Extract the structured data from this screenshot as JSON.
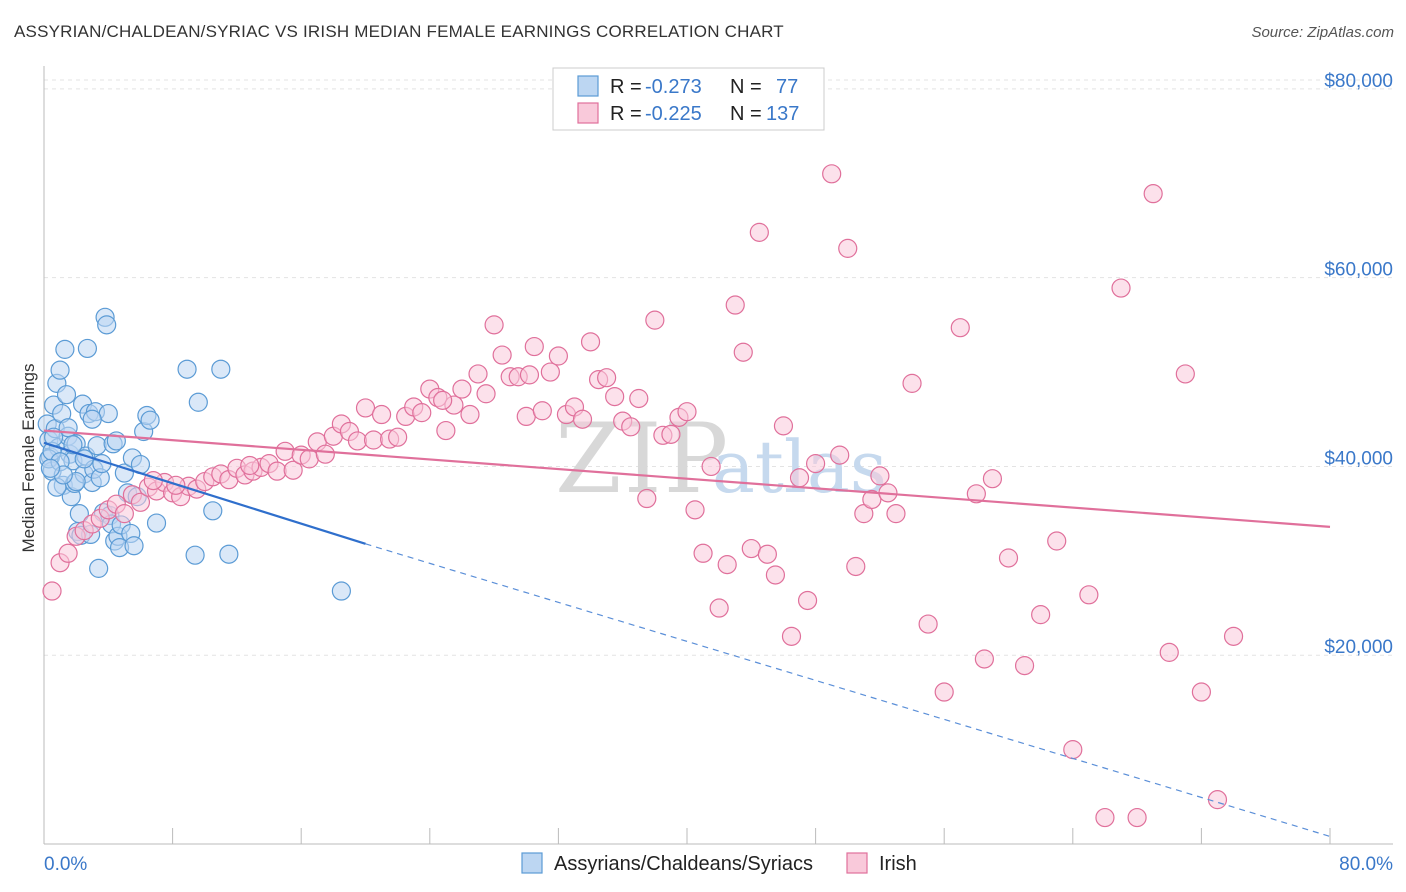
{
  "chart_data": {
    "type": "scatter",
    "title": "ASSYRIAN/CHALDEAN/SYRIAC VS IRISH MEDIAN FEMALE EARNINGS CORRELATION CHART",
    "source": "Source: ZipAtlas.com",
    "watermark": "ZIPatlas",
    "xlabel": "",
    "ylabel": "Median Female Earnings",
    "xlim": [
      0,
      80
    ],
    "ylim": [
      0,
      82000
    ],
    "x_tick_labels": {
      "left": "0.0%",
      "right": "80.0%"
    },
    "y_ticks": [
      {
        "value": 20000,
        "label": "$20,000"
      },
      {
        "value": 40000,
        "label": "$40,000"
      },
      {
        "value": 60000,
        "label": "$60,000"
      },
      {
        "value": 80000,
        "label": "$80,000"
      }
    ],
    "legend": {
      "stats": [
        {
          "r_label": "R =",
          "r": "-0.273",
          "n_label": "N =",
          "n": "77"
        },
        {
          "r_label": "R =",
          "r": "-0.225",
          "n_label": "N =",
          "n": "137"
        }
      ],
      "bottom": [
        "Assyrians/Chaldeans/Syriacs",
        "Irish"
      ]
    },
    "series": [
      {
        "name": "Assyrians/Chaldeans/Syriacs",
        "color": "#5b9bd5",
        "fill": "#bcd6f2",
        "trend": {
          "x0": 0,
          "y0": 42500,
          "x1": 20,
          "y1": 31800,
          "dash_to_x": 80,
          "dash_to_y": 800
        },
        "points": [
          [
            0.2,
            44500
          ],
          [
            0.3,
            42800
          ],
          [
            0.4,
            41000
          ],
          [
            0.5,
            39500
          ],
          [
            0.6,
            46500
          ],
          [
            0.7,
            44000
          ],
          [
            0.8,
            48800
          ],
          [
            0.9,
            42000
          ],
          [
            1.0,
            50200
          ],
          [
            1.1,
            45600
          ],
          [
            1.2,
            38000
          ],
          [
            1.3,
            52400
          ],
          [
            1.4,
            47600
          ],
          [
            1.5,
            43200
          ],
          [
            1.6,
            41300
          ],
          [
            1.7,
            36800
          ],
          [
            1.8,
            40600
          ],
          [
            1.9,
            38200
          ],
          [
            2.0,
            42400
          ],
          [
            2.1,
            33100
          ],
          [
            2.2,
            35000
          ],
          [
            2.3,
            32700
          ],
          [
            2.4,
            46600
          ],
          [
            2.5,
            39200
          ],
          [
            2.6,
            41100
          ],
          [
            2.7,
            52500
          ],
          [
            2.8,
            45600
          ],
          [
            2.9,
            32800
          ],
          [
            3.0,
            38300
          ],
          [
            3.1,
            39700
          ],
          [
            3.2,
            45800
          ],
          [
            3.3,
            42200
          ],
          [
            3.4,
            29200
          ],
          [
            3.5,
            38800
          ],
          [
            3.6,
            40300
          ],
          [
            3.7,
            35100
          ],
          [
            3.8,
            55800
          ],
          [
            3.9,
            55000
          ],
          [
            4.0,
            45600
          ],
          [
            4.1,
            34800
          ],
          [
            4.2,
            33900
          ],
          [
            4.3,
            42400
          ],
          [
            4.4,
            32100
          ],
          [
            4.5,
            42700
          ],
          [
            4.6,
            32600
          ],
          [
            4.7,
            31400
          ],
          [
            4.8,
            33800
          ],
          [
            5.0,
            39300
          ],
          [
            5.2,
            37200
          ],
          [
            5.4,
            32900
          ],
          [
            5.6,
            31600
          ],
          [
            5.5,
            40900
          ],
          [
            5.8,
            36800
          ],
          [
            6.0,
            40200
          ],
          [
            6.2,
            43700
          ],
          [
            6.4,
            45400
          ],
          [
            6.6,
            44900
          ],
          [
            7.0,
            34000
          ],
          [
            8.9,
            50300
          ],
          [
            9.4,
            30600
          ],
          [
            9.6,
            46800
          ],
          [
            10.5,
            35300
          ],
          [
            11.0,
            50300
          ],
          [
            11.5,
            30700
          ],
          [
            18.5,
            26800
          ],
          [
            0.3,
            40800
          ],
          [
            0.5,
            41600
          ],
          [
            0.8,
            37800
          ],
          [
            1.0,
            40500
          ],
          [
            1.5,
            44100
          ],
          [
            2.0,
            38400
          ],
          [
            2.5,
            40800
          ],
          [
            3.0,
            45000
          ],
          [
            1.2,
            39100
          ],
          [
            0.6,
            43100
          ],
          [
            1.8,
            42300
          ],
          [
            0.4,
            39800
          ]
        ]
      },
      {
        "name": "Irish",
        "color": "#e0709b",
        "fill": "#f9c9da",
        "trend": {
          "x0": 0,
          "y0": 43800,
          "x1": 80,
          "y1": 33600
        },
        "points": [
          [
            0.5,
            26800
          ],
          [
            1.0,
            29800
          ],
          [
            1.5,
            30800
          ],
          [
            2.0,
            32600
          ],
          [
            2.5,
            33200
          ],
          [
            3.0,
            33900
          ],
          [
            3.5,
            34500
          ],
          [
            4.0,
            35400
          ],
          [
            4.5,
            36000
          ],
          [
            5.0,
            35000
          ],
          [
            5.5,
            37000
          ],
          [
            6.0,
            36200
          ],
          [
            6.5,
            37800
          ],
          [
            7.0,
            37400
          ],
          [
            7.5,
            38300
          ],
          [
            8.0,
            37200
          ],
          [
            8.5,
            36800
          ],
          [
            9.0,
            37900
          ],
          [
            9.5,
            37600
          ],
          [
            10.0,
            38400
          ],
          [
            10.5,
            38900
          ],
          [
            11.0,
            39200
          ],
          [
            11.5,
            38600
          ],
          [
            12.0,
            39800
          ],
          [
            12.5,
            39100
          ],
          [
            13.0,
            39500
          ],
          [
            13.5,
            39900
          ],
          [
            14.0,
            40300
          ],
          [
            14.5,
            39500
          ],
          [
            15.0,
            41600
          ],
          [
            15.5,
            39600
          ],
          [
            16.0,
            41200
          ],
          [
            16.5,
            40800
          ],
          [
            17.0,
            42600
          ],
          [
            17.5,
            41300
          ],
          [
            18.0,
            43200
          ],
          [
            18.5,
            44500
          ],
          [
            19.0,
            43700
          ],
          [
            19.5,
            42700
          ],
          [
            20.0,
            46200
          ],
          [
            20.5,
            42800
          ],
          [
            21.0,
            45500
          ],
          [
            21.5,
            42900
          ],
          [
            22.0,
            43100
          ],
          [
            22.5,
            45300
          ],
          [
            23.0,
            46300
          ],
          [
            23.5,
            45700
          ],
          [
            24.0,
            48200
          ],
          [
            24.5,
            47300
          ],
          [
            25.0,
            43800
          ],
          [
            25.5,
            46500
          ],
          [
            26.0,
            48200
          ],
          [
            26.5,
            45500
          ],
          [
            27.0,
            49800
          ],
          [
            27.5,
            47700
          ],
          [
            28.0,
            55000
          ],
          [
            28.5,
            51800
          ],
          [
            29.0,
            49500
          ],
          [
            29.5,
            49500
          ],
          [
            30.0,
            45300
          ],
          [
            30.5,
            52700
          ],
          [
            31.0,
            45900
          ],
          [
            31.5,
            50000
          ],
          [
            32.0,
            51700
          ],
          [
            32.5,
            45500
          ],
          [
            33.0,
            46300
          ],
          [
            33.5,
            45000
          ],
          [
            34.0,
            53200
          ],
          [
            34.5,
            49200
          ],
          [
            35.0,
            49400
          ],
          [
            35.5,
            47400
          ],
          [
            36.0,
            44800
          ],
          [
            36.5,
            44200
          ],
          [
            37.0,
            47200
          ],
          [
            37.5,
            36600
          ],
          [
            38.0,
            55500
          ],
          [
            38.5,
            43300
          ],
          [
            39.0,
            43400
          ],
          [
            39.5,
            45200
          ],
          [
            40.0,
            45800
          ],
          [
            40.5,
            35400
          ],
          [
            41.0,
            30800
          ],
          [
            41.5,
            40000
          ],
          [
            42.0,
            25000
          ],
          [
            42.5,
            29600
          ],
          [
            43.0,
            57100
          ],
          [
            43.5,
            52100
          ],
          [
            44.0,
            31300
          ],
          [
            44.5,
            64800
          ],
          [
            45.0,
            30700
          ],
          [
            45.5,
            28500
          ],
          [
            46.0,
            44300
          ],
          [
            46.5,
            22000
          ],
          [
            47.0,
            38800
          ],
          [
            47.5,
            25800
          ],
          [
            48.0,
            40300
          ],
          [
            49.0,
            71000
          ],
          [
            49.5,
            41200
          ],
          [
            50.0,
            63100
          ],
          [
            50.5,
            29400
          ],
          [
            51.0,
            35000
          ],
          [
            51.5,
            36500
          ],
          [
            52.0,
            39000
          ],
          [
            52.5,
            37200
          ],
          [
            53.0,
            35000
          ],
          [
            54.0,
            48800
          ],
          [
            55.0,
            23300
          ],
          [
            56.0,
            16100
          ],
          [
            57.0,
            54700
          ],
          [
            58.0,
            37100
          ],
          [
            58.5,
            19600
          ],
          [
            59.0,
            38700
          ],
          [
            60.0,
            30300
          ],
          [
            61.0,
            18900
          ],
          [
            62.0,
            24300
          ],
          [
            63.0,
            32100
          ],
          [
            64.0,
            10000
          ],
          [
            65.0,
            26400
          ],
          [
            66.0,
            2800
          ],
          [
            67.0,
            58900
          ],
          [
            68.0,
            2800
          ],
          [
            69.0,
            68900
          ],
          [
            70.0,
            20300
          ],
          [
            71.0,
            49800
          ],
          [
            72.0,
            16100
          ],
          [
            73.0,
            4700
          ],
          [
            74.0,
            22000
          ],
          [
            6.8,
            38500
          ],
          [
            8.2,
            38000
          ],
          [
            12.8,
            40100
          ],
          [
            24.8,
            47000
          ],
          [
            30.2,
            49700
          ]
        ]
      }
    ]
  }
}
